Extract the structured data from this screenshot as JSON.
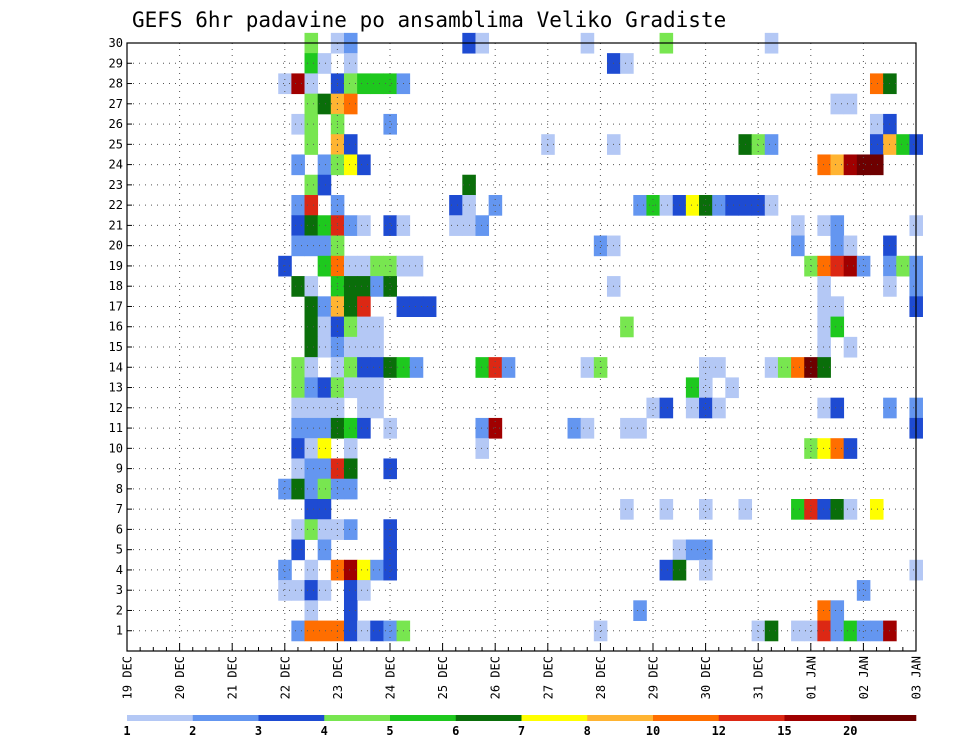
{
  "chart_data": {
    "type": "heatmap",
    "title": "GEFS 6hr padavine po ansamblima Veliko Gradiste",
    "x_tick_labels": [
      "19 DEC",
      "20 DEC",
      "21 DEC",
      "22 DEC",
      "23 DEC",
      "24 DEC",
      "25 DEC",
      "26 DEC",
      "27 DEC",
      "28 DEC",
      "29 DEC",
      "30 DEC",
      "31 DEC",
      "01 JAN",
      "02 JAN",
      "03 JAN"
    ],
    "y_tick_labels": [
      "1",
      "2",
      "3",
      "4",
      "5",
      "6",
      "7",
      "8",
      "9",
      "10",
      "11",
      "12",
      "13",
      "14",
      "15",
      "16",
      "17",
      "18",
      "19",
      "20",
      "21",
      "22",
      "23",
      "24",
      "25",
      "26",
      "27",
      "28",
      "29",
      "30"
    ],
    "x_range_steps": [
      0,
      60
    ],
    "y_range_members": [
      0,
      30
    ],
    "grid": true,
    "colorbar": {
      "placement": "bottom",
      "labels": [
        "1",
        "2",
        "3",
        "4",
        "5",
        "6",
        "7",
        "8",
        "10",
        "12",
        "15",
        "20"
      ],
      "colors": [
        "#b4c8f5",
        "#6496f0",
        "#1e4bd2",
        "#78e650",
        "#1ec81e",
        "#0a6e0a",
        "#ffff00",
        "#ffb432",
        "#ff6e00",
        "#dc2814",
        "#a00000",
        "#6e0000"
      ]
    },
    "value_note": "cells: [member, 6h step index from 19 DEC 00Z, color class 0-11]",
    "cells": [
      [
        30,
        14,
        3
      ],
      [
        30,
        16,
        0
      ],
      [
        30,
        17,
        1
      ],
      [
        30,
        26,
        2
      ],
      [
        30,
        27,
        0
      ],
      [
        30,
        35,
        0
      ],
      [
        30,
        41,
        3
      ],
      [
        30,
        49,
        0
      ],
      [
        29,
        14,
        4
      ],
      [
        29,
        15,
        0
      ],
      [
        29,
        17,
        0
      ],
      [
        29,
        37,
        2
      ],
      [
        29,
        38,
        0
      ],
      [
        28,
        12,
        0
      ],
      [
        28,
        13,
        10
      ],
      [
        28,
        14,
        0
      ],
      [
        28,
        16,
        2
      ],
      [
        28,
        17,
        3
      ],
      [
        28,
        18,
        4
      ],
      [
        28,
        19,
        4
      ],
      [
        28,
        20,
        4
      ],
      [
        28,
        21,
        1
      ],
      [
        28,
        57,
        8
      ],
      [
        28,
        58,
        5
      ],
      [
        27,
        14,
        3
      ],
      [
        27,
        15,
        5
      ],
      [
        27,
        16,
        7
      ],
      [
        27,
        17,
        8
      ],
      [
        27,
        54,
        0
      ],
      [
        27,
        55,
        0
      ],
      [
        26,
        13,
        0
      ],
      [
        26,
        14,
        3
      ],
      [
        26,
        16,
        3
      ],
      [
        26,
        20,
        1
      ],
      [
        26,
        57,
        0
      ],
      [
        26,
        58,
        2
      ],
      [
        25,
        14,
        3
      ],
      [
        25,
        16,
        7
      ],
      [
        25,
        17,
        2
      ],
      [
        25,
        32,
        0
      ],
      [
        25,
        37,
        0
      ],
      [
        25,
        47,
        5
      ],
      [
        25,
        48,
        3
      ],
      [
        25,
        49,
        1
      ],
      [
        25,
        57,
        2
      ],
      [
        25,
        58,
        7
      ],
      [
        25,
        59,
        4
      ],
      [
        25,
        60,
        2
      ],
      [
        24,
        13,
        1
      ],
      [
        24,
        15,
        1
      ],
      [
        24,
        16,
        3
      ],
      [
        24,
        17,
        6
      ],
      [
        24,
        18,
        2
      ],
      [
        24,
        53,
        8
      ],
      [
        24,
        54,
        7
      ],
      [
        24,
        55,
        10
      ],
      [
        24,
        56,
        11
      ],
      [
        24,
        57,
        11
      ],
      [
        23,
        14,
        3
      ],
      [
        23,
        15,
        2
      ],
      [
        23,
        26,
        5
      ],
      [
        22,
        13,
        1
      ],
      [
        22,
        14,
        9
      ],
      [
        22,
        16,
        1
      ],
      [
        22,
        25,
        2
      ],
      [
        22,
        26,
        0
      ],
      [
        22,
        28,
        1
      ],
      [
        22,
        39,
        1
      ],
      [
        22,
        40,
        4
      ],
      [
        22,
        41,
        0
      ],
      [
        22,
        42,
        2
      ],
      [
        22,
        43,
        6
      ],
      [
        22,
        44,
        5
      ],
      [
        22,
        45,
        1
      ],
      [
        22,
        46,
        2
      ],
      [
        22,
        47,
        2
      ],
      [
        22,
        48,
        2
      ],
      [
        22,
        49,
        0
      ],
      [
        21,
        13,
        2
      ],
      [
        21,
        14,
        5
      ],
      [
        21,
        15,
        4
      ],
      [
        21,
        16,
        9
      ],
      [
        21,
        17,
        1
      ],
      [
        21,
        18,
        0
      ],
      [
        21,
        20,
        2
      ],
      [
        21,
        21,
        0
      ],
      [
        21,
        25,
        0
      ],
      [
        21,
        26,
        0
      ],
      [
        21,
        27,
        1
      ],
      [
        21,
        51,
        0
      ],
      [
        21,
        53,
        0
      ],
      [
        21,
        54,
        1
      ],
      [
        21,
        60,
        0
      ],
      [
        20,
        13,
        1
      ],
      [
        20,
        14,
        1
      ],
      [
        20,
        15,
        1
      ],
      [
        20,
        16,
        3
      ],
      [
        20,
        36,
        1
      ],
      [
        20,
        37,
        0
      ],
      [
        20,
        51,
        1
      ],
      [
        20,
        54,
        1
      ],
      [
        20,
        55,
        0
      ],
      [
        20,
        58,
        2
      ],
      [
        19,
        12,
        2
      ],
      [
        19,
        15,
        4
      ],
      [
        19,
        16,
        8
      ],
      [
        19,
        17,
        0
      ],
      [
        19,
        18,
        0
      ],
      [
        19,
        19,
        3
      ],
      [
        19,
        20,
        3
      ],
      [
        19,
        21,
        0
      ],
      [
        19,
        22,
        0
      ],
      [
        19,
        52,
        3
      ],
      [
        19,
        53,
        8
      ],
      [
        19,
        54,
        9
      ],
      [
        19,
        55,
        10
      ],
      [
        19,
        56,
        1
      ],
      [
        19,
        58,
        1
      ],
      [
        19,
        59,
        3
      ],
      [
        19,
        60,
        1
      ],
      [
        18,
        13,
        5
      ],
      [
        18,
        14,
        0
      ],
      [
        18,
        16,
        4
      ],
      [
        18,
        17,
        5
      ],
      [
        18,
        18,
        5
      ],
      [
        18,
        19,
        1
      ],
      [
        18,
        20,
        5
      ],
      [
        18,
        37,
        0
      ],
      [
        18,
        53,
        0
      ],
      [
        18,
        58,
        0
      ],
      [
        18,
        60,
        1
      ],
      [
        17,
        14,
        5
      ],
      [
        17,
        15,
        1
      ],
      [
        17,
        16,
        7
      ],
      [
        17,
        17,
        5
      ],
      [
        17,
        18,
        9
      ],
      [
        17,
        21,
        2
      ],
      [
        17,
        22,
        2
      ],
      [
        17,
        23,
        2
      ],
      [
        17,
        53,
        0
      ],
      [
        17,
        54,
        0
      ],
      [
        17,
        60,
        2
      ],
      [
        16,
        14,
        5
      ],
      [
        16,
        15,
        0
      ],
      [
        16,
        16,
        2
      ],
      [
        16,
        17,
        3
      ],
      [
        16,
        18,
        0
      ],
      [
        16,
        19,
        0
      ],
      [
        16,
        38,
        3
      ],
      [
        16,
        53,
        0
      ],
      [
        16,
        54,
        4
      ],
      [
        15,
        14,
        5
      ],
      [
        15,
        15,
        0
      ],
      [
        15,
        16,
        1
      ],
      [
        15,
        17,
        0
      ],
      [
        15,
        18,
        0
      ],
      [
        15,
        19,
        0
      ],
      [
        15,
        53,
        0
      ],
      [
        15,
        55,
        0
      ],
      [
        14,
        13,
        3
      ],
      [
        14,
        14,
        0
      ],
      [
        14,
        16,
        0
      ],
      [
        14,
        17,
        3
      ],
      [
        14,
        18,
        2
      ],
      [
        14,
        19,
        2
      ],
      [
        14,
        20,
        5
      ],
      [
        14,
        21,
        4
      ],
      [
        14,
        22,
        1
      ],
      [
        14,
        27,
        4
      ],
      [
        14,
        28,
        9
      ],
      [
        14,
        29,
        1
      ],
      [
        14,
        35,
        0
      ],
      [
        14,
        36,
        3
      ],
      [
        14,
        44,
        0
      ],
      [
        14,
        45,
        0
      ],
      [
        14,
        49,
        0
      ],
      [
        14,
        50,
        3
      ],
      [
        14,
        51,
        8
      ],
      [
        14,
        52,
        11
      ],
      [
        14,
        53,
        5
      ],
      [
        13,
        13,
        3
      ],
      [
        13,
        14,
        1
      ],
      [
        13,
        15,
        2
      ],
      [
        13,
        16,
        3
      ],
      [
        13,
        17,
        0
      ],
      [
        13,
        18,
        0
      ],
      [
        13,
        19,
        0
      ],
      [
        13,
        43,
        4
      ],
      [
        13,
        44,
        0
      ],
      [
        13,
        46,
        0
      ],
      [
        12,
        13,
        0
      ],
      [
        12,
        14,
        0
      ],
      [
        12,
        15,
        0
      ],
      [
        12,
        16,
        0
      ],
      [
        12,
        18,
        0
      ],
      [
        12,
        19,
        0
      ],
      [
        12,
        40,
        0
      ],
      [
        12,
        41,
        2
      ],
      [
        12,
        43,
        0
      ],
      [
        12,
        44,
        2
      ],
      [
        12,
        45,
        0
      ],
      [
        12,
        53,
        0
      ],
      [
        12,
        54,
        2
      ],
      [
        12,
        58,
        1
      ],
      [
        12,
        60,
        1
      ],
      [
        11,
        13,
        1
      ],
      [
        11,
        14,
        1
      ],
      [
        11,
        15,
        1
      ],
      [
        11,
        16,
        5
      ],
      [
        11,
        17,
        4
      ],
      [
        11,
        18,
        2
      ],
      [
        11,
        20,
        0
      ],
      [
        11,
        27,
        1
      ],
      [
        11,
        28,
        10
      ],
      [
        11,
        34,
        1
      ],
      [
        11,
        35,
        0
      ],
      [
        11,
        38,
        0
      ],
      [
        11,
        39,
        0
      ],
      [
        11,
        60,
        2
      ],
      [
        10,
        13,
        2
      ],
      [
        10,
        14,
        0
      ],
      [
        10,
        15,
        6
      ],
      [
        10,
        17,
        0
      ],
      [
        10,
        27,
        0
      ],
      [
        10,
        52,
        3
      ],
      [
        10,
        53,
        6
      ],
      [
        10,
        54,
        8
      ],
      [
        10,
        55,
        2
      ],
      [
        9,
        13,
        0
      ],
      [
        9,
        14,
        1
      ],
      [
        9,
        15,
        1
      ],
      [
        9,
        16,
        9
      ],
      [
        9,
        17,
        5
      ],
      [
        9,
        20,
        2
      ],
      [
        8,
        12,
        1
      ],
      [
        8,
        13,
        5
      ],
      [
        8,
        14,
        1
      ],
      [
        8,
        15,
        3
      ],
      [
        8,
        16,
        1
      ],
      [
        8,
        17,
        1
      ],
      [
        7,
        14,
        2
      ],
      [
        7,
        15,
        2
      ],
      [
        7,
        38,
        0
      ],
      [
        7,
        41,
        0
      ],
      [
        7,
        44,
        0
      ],
      [
        7,
        47,
        0
      ],
      [
        7,
        51,
        4
      ],
      [
        7,
        52,
        9
      ],
      [
        7,
        53,
        2
      ],
      [
        7,
        54,
        5
      ],
      [
        7,
        55,
        0
      ],
      [
        7,
        57,
        6
      ],
      [
        6,
        13,
        0
      ],
      [
        6,
        14,
        3
      ],
      [
        6,
        15,
        0
      ],
      [
        6,
        16,
        0
      ],
      [
        6,
        17,
        1
      ],
      [
        6,
        20,
        2
      ],
      [
        5,
        13,
        2
      ],
      [
        5,
        15,
        1
      ],
      [
        5,
        20,
        2
      ],
      [
        5,
        42,
        0
      ],
      [
        5,
        43,
        1
      ],
      [
        5,
        44,
        1
      ],
      [
        4,
        12,
        1
      ],
      [
        4,
        14,
        0
      ],
      [
        4,
        16,
        8
      ],
      [
        4,
        17,
        10
      ],
      [
        4,
        18,
        6
      ],
      [
        4,
        19,
        1
      ],
      [
        4,
        20,
        2
      ],
      [
        4,
        41,
        2
      ],
      [
        4,
        42,
        5
      ],
      [
        4,
        44,
        0
      ],
      [
        4,
        60,
        0
      ],
      [
        3,
        12,
        0
      ],
      [
        3,
        13,
        0
      ],
      [
        3,
        14,
        2
      ],
      [
        3,
        15,
        0
      ],
      [
        3,
        17,
        2
      ],
      [
        3,
        18,
        0
      ],
      [
        3,
        56,
        1
      ],
      [
        2,
        14,
        0
      ],
      [
        2,
        17,
        2
      ],
      [
        2,
        39,
        1
      ],
      [
        2,
        53,
        8
      ],
      [
        2,
        54,
        1
      ],
      [
        1,
        13,
        1
      ],
      [
        1,
        14,
        8
      ],
      [
        1,
        15,
        8
      ],
      [
        1,
        16,
        8
      ],
      [
        1,
        17,
        2
      ],
      [
        1,
        18,
        0
      ],
      [
        1,
        19,
        2
      ],
      [
        1,
        20,
        1
      ],
      [
        1,
        21,
        3
      ],
      [
        1,
        36,
        0
      ],
      [
        1,
        48,
        0
      ],
      [
        1,
        49,
        5
      ],
      [
        1,
        51,
        0
      ],
      [
        1,
        52,
        0
      ],
      [
        1,
        53,
        9
      ],
      [
        1,
        54,
        1
      ],
      [
        1,
        55,
        4
      ],
      [
        1,
        56,
        1
      ],
      [
        1,
        57,
        1
      ],
      [
        1,
        58,
        10
      ]
    ]
  }
}
